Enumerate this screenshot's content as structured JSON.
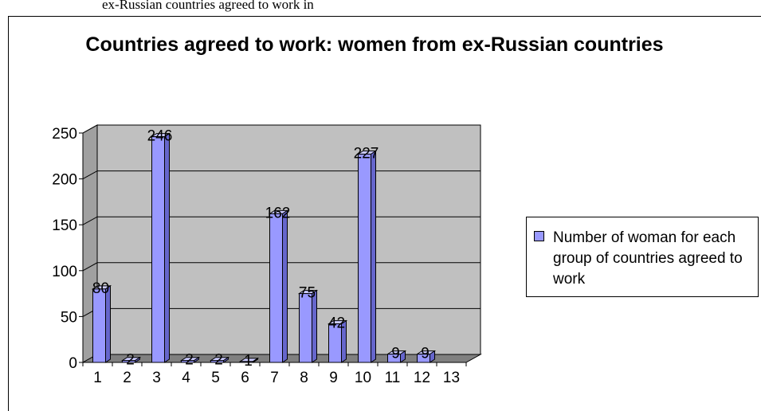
{
  "document": {
    "caption_fragment": "ex-Russian countries agreed to work in"
  },
  "chart_data": {
    "type": "bar",
    "title": "Countries agreed to work: women from ex-Russian countries",
    "xlabel": "",
    "ylabel": "",
    "categories": [
      "1",
      "2",
      "3",
      "4",
      "5",
      "6",
      "7",
      "8",
      "9",
      "10",
      "11",
      "12",
      "13"
    ],
    "series": [
      {
        "name": "Number of woman for each group of countries agreed to work",
        "values": [
          80,
          2,
          246,
          2,
          2,
          1,
          162,
          75,
          42,
          227,
          9,
          9,
          null
        ],
        "color": "#9999ff"
      }
    ],
    "data_labels": [
      "80",
      "2",
      "246",
      "2",
      "2",
      "1",
      "162",
      "75",
      "42",
      "227",
      "9",
      "9",
      ""
    ],
    "ylim": [
      0,
      250
    ],
    "yticks": [
      "0",
      "50",
      "100",
      "150",
      "200",
      "250"
    ],
    "grid": true,
    "style": "3d",
    "wall_color": "#c0c0c0",
    "floor_color": "#808080",
    "legend": "right"
  }
}
